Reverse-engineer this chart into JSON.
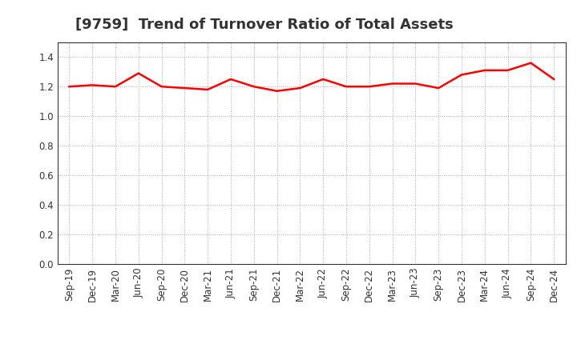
{
  "title": "[9759]  Trend of Turnover Ratio of Total Assets",
  "x_labels": [
    "Sep-19",
    "Dec-19",
    "Mar-20",
    "Jun-20",
    "Sep-20",
    "Dec-20",
    "Mar-21",
    "Jun-21",
    "Sep-21",
    "Dec-21",
    "Mar-22",
    "Jun-22",
    "Sep-22",
    "Dec-22",
    "Mar-23",
    "Jun-23",
    "Sep-23",
    "Dec-23",
    "Mar-24",
    "Jun-24",
    "Sep-24",
    "Dec-24"
  ],
  "y_values": [
    1.2,
    1.21,
    1.2,
    1.29,
    1.2,
    1.19,
    1.18,
    1.25,
    1.2,
    1.17,
    1.19,
    1.25,
    1.2,
    1.2,
    1.22,
    1.22,
    1.19,
    1.28,
    1.31,
    1.31,
    1.36,
    1.25
  ],
  "line_color": "#ff0000",
  "line_width": 1.8,
  "ylim": [
    0.0,
    1.5
  ],
  "yticks": [
    0.0,
    0.2,
    0.4,
    0.6,
    0.8,
    1.0,
    1.2,
    1.4
  ],
  "grid_color": "#aaaaaa",
  "bg_color": "#ffffff",
  "title_fontsize": 13,
  "tick_fontsize": 8.5,
  "title_color": "#333333"
}
